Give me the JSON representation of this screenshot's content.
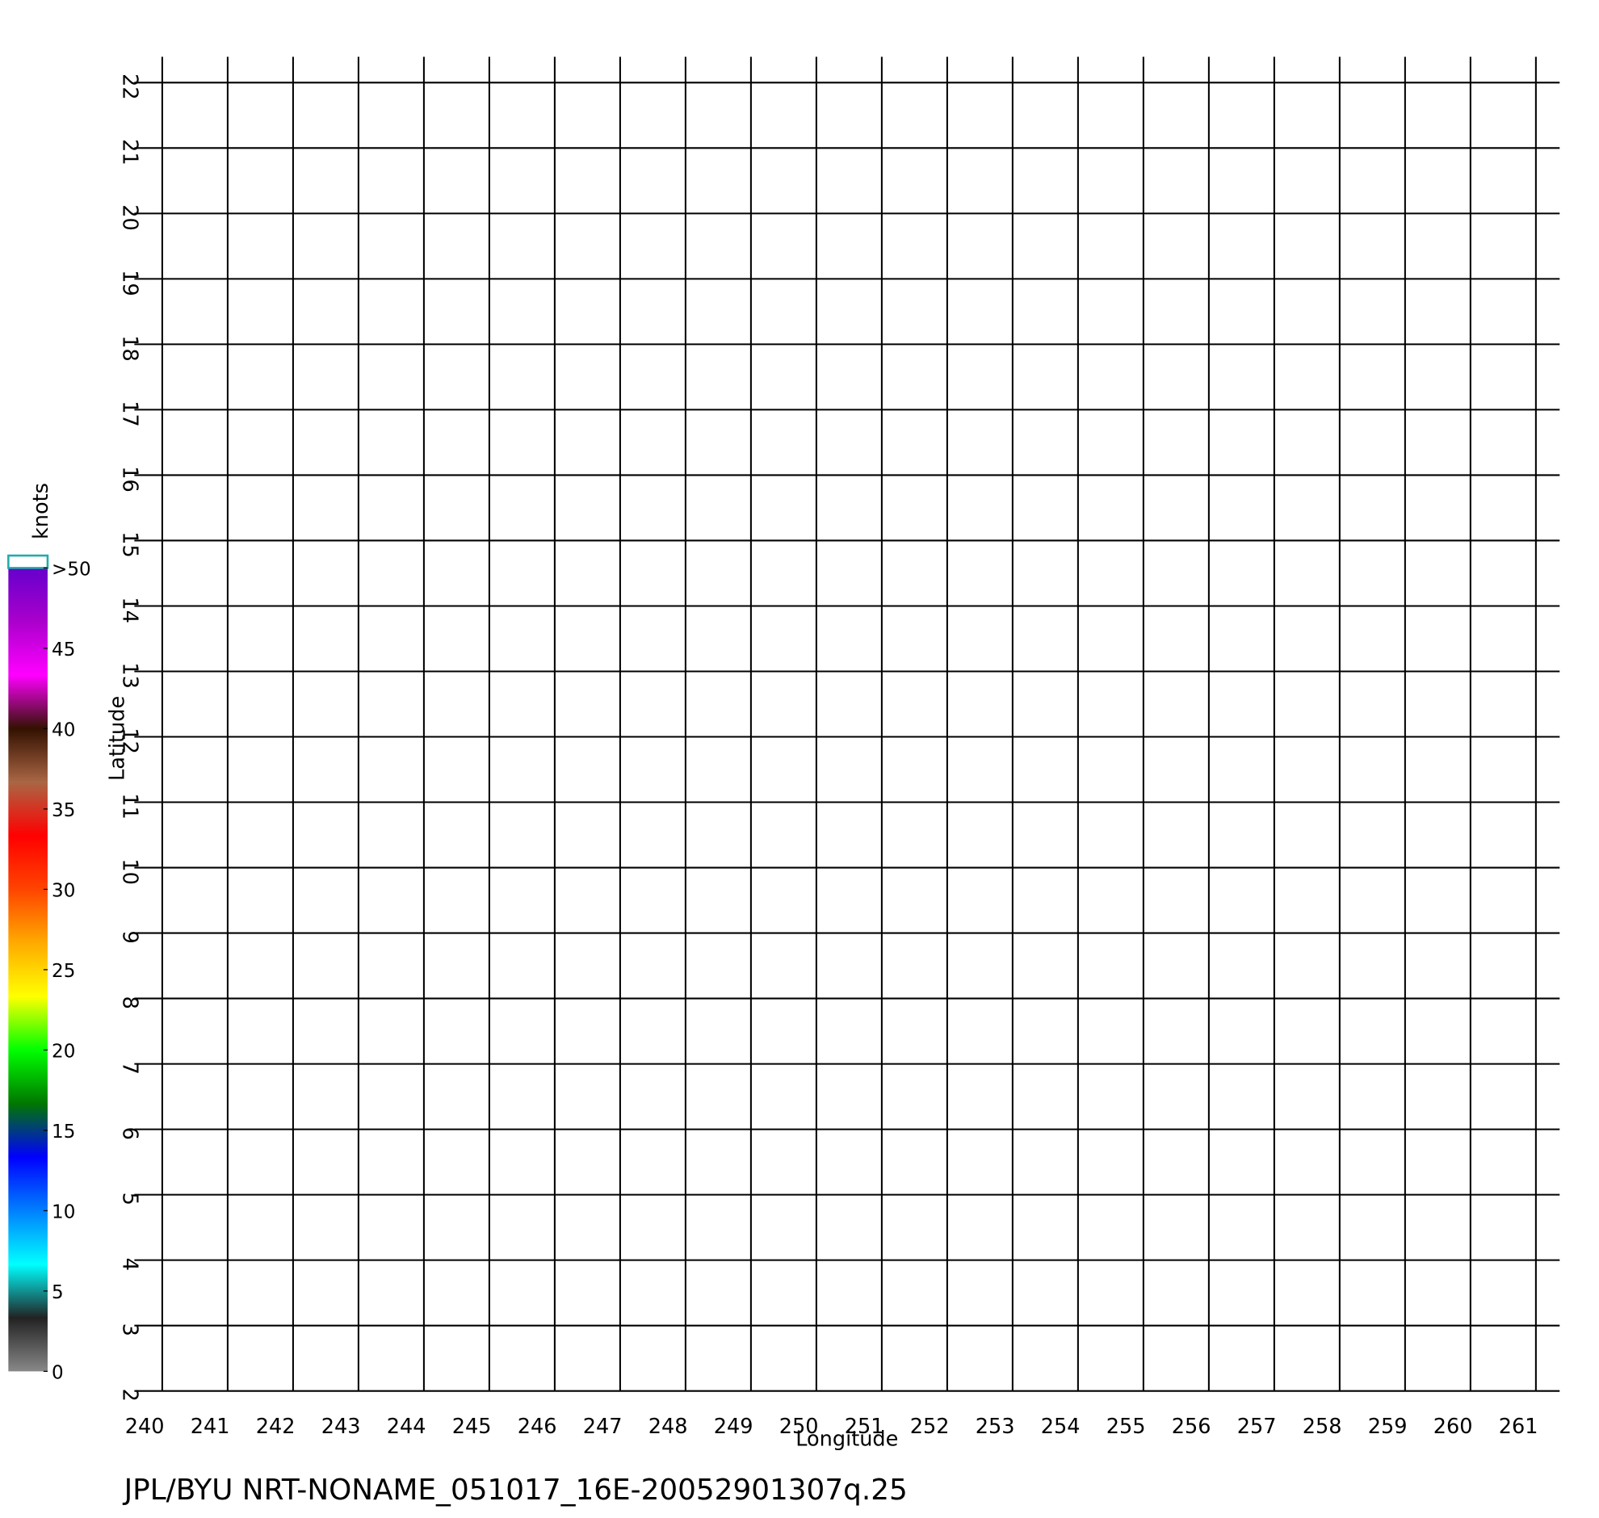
{
  "chart_data": {
    "type": "vector",
    "xlabel": "Longitude",
    "ylabel": "Latitude",
    "xlim": [
      240,
      261
    ],
    "ylim": [
      2,
      22
    ],
    "xticks": [
      240,
      241,
      242,
      243,
      244,
      245,
      246,
      247,
      248,
      249,
      250,
      251,
      252,
      253,
      254,
      255,
      256,
      257,
      258,
      259,
      260,
      261
    ],
    "yticks": [
      2,
      3,
      4,
      5,
      6,
      7,
      8,
      9,
      10,
      11,
      12,
      13,
      14,
      15,
      16,
      17,
      18,
      19,
      20,
      21,
      22
    ],
    "grid": true,
    "footer": "JPL/BYU NRT-NONAME_051017_16E-20052901307q.25",
    "colorbar": {
      "label": "knots",
      "lim": [
        0,
        50
      ],
      "ticks": [
        0,
        5,
        10,
        15,
        20,
        25,
        30,
        35,
        40,
        45,
        {
          "value": 50,
          "label": ">50"
        }
      ],
      "colors": [
        "#888888",
        "#222222",
        "#00ffff",
        "#0080ff",
        "#0000ff",
        "#007700",
        "#00ff00",
        "#ffff00",
        "#ffaa00",
        "#ff4400",
        "#ff0000",
        "#aa6644",
        "#331100",
        "#ff00ff",
        "#aa00cc",
        "#6600cc"
      ]
    }
  }
}
